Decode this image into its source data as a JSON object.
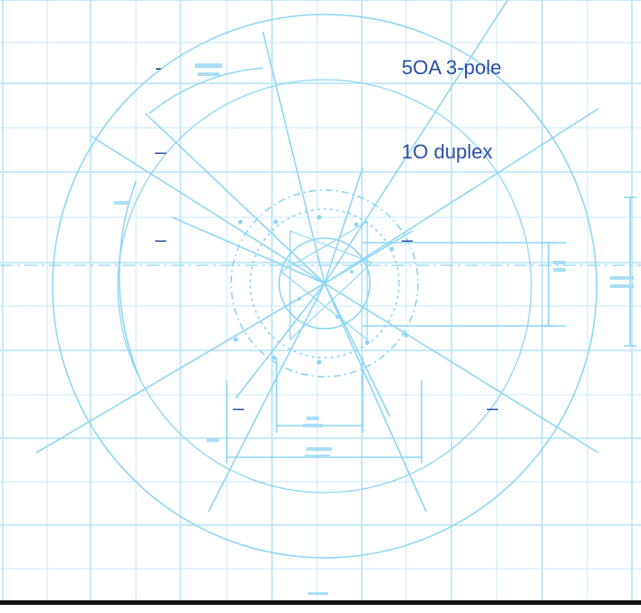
{
  "labels": {
    "breaker": "5OA 3-pole",
    "duplex": "1O duplex"
  },
  "markers": {
    "dash_short": "-",
    "dash_long": "–"
  },
  "colors": {
    "grid_line": "#c7e9f8",
    "drawing_line": "#8ed6f5",
    "label_text": "#2a4fa8",
    "bottom_bar": "#111111"
  }
}
